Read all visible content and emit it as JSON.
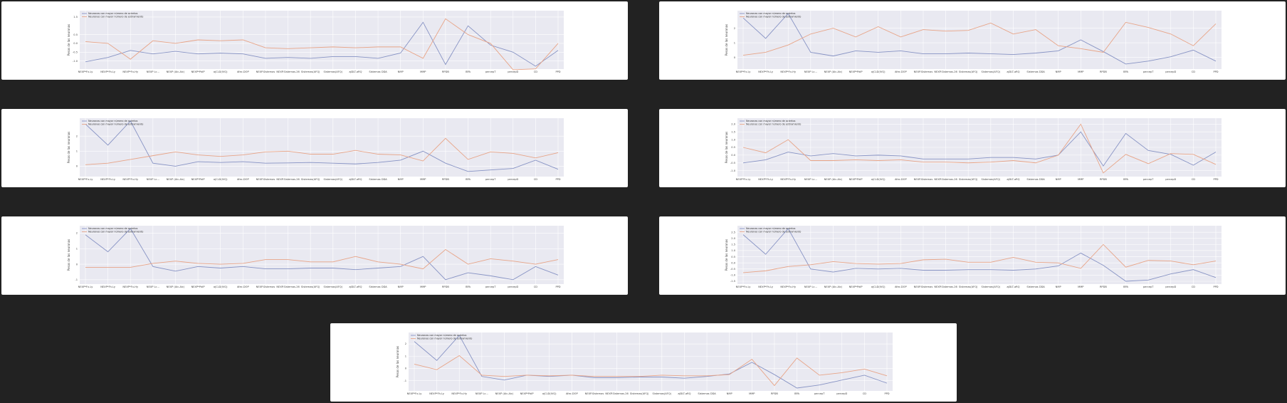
{
  "colors": {
    "series_a": "#8793c4",
    "series_b": "#e8a487",
    "plot_bg": "#e9e9f1",
    "grid": "#ffffff"
  },
  "chart_data": [
    {
      "type": "line",
      "ylabel": "Pesos de las neuronas",
      "categories": [
        "NEXP*Fx-Ly",
        "NEXP*Fh-Ly",
        "NEXP*Fx-Hy",
        "NEXP Lc...",
        "NEXP (Alc-Alc)",
        "NEXP*PdiP",
        "ajCLD(IVQ)",
        "Afec.DOP",
        "NEXP.Sistemas",
        "NEXP.Sistemas-26",
        "Sistemas(AFQ)",
        "Sistemas(AFQ)",
        "ajDLT-aRQ",
        "Sistemas DDA",
        "NMP",
        "MMP",
        "RPDB",
        "BPA",
        "percepT",
        "percepD",
        "CD",
        "PPD"
      ],
      "yticks": [
        "1.5",
        "0.5",
        "0.0",
        "-0.5",
        "-1.0"
      ],
      "ylim": [
        -1.3,
        1.7
      ],
      "series": [
        {
          "name": "Neuronas con mayor número de aciertos",
          "values": [
            -1.05,
            -0.8,
            -0.4,
            -0.6,
            -0.45,
            -0.6,
            -0.55,
            -0.6,
            -0.85,
            -0.8,
            -0.85,
            -0.75,
            -0.75,
            -0.85,
            -0.55,
            1.2,
            -1.2,
            1.0,
            -0.1,
            -0.5,
            -1.3,
            -0.4
          ]
        },
        {
          "name": "Neuronas con mayor número de estiramiento",
          "values": [
            0.1,
            0.0,
            -0.9,
            0.15,
            0.0,
            0.2,
            0.15,
            0.2,
            -0.25,
            -0.3,
            -0.25,
            -0.2,
            -0.25,
            -0.2,
            -0.2,
            -0.85,
            1.4,
            0.5,
            0.0,
            -1.5,
            -1.45,
            0.0
          ]
        }
      ]
    },
    {
      "type": "line",
      "ylabel": "Pesos de las neuronas",
      "categories": [
        "NEXP*Fx-Ly",
        "NEXP*Fh-Ly",
        "NEXP*Fx-Hy",
        "NEXP Lc...",
        "NEXP (Alc-Alc)",
        "NEXP*PdiP",
        "ajCLD(IVQ)",
        "Afec.DOP",
        "NEXP.Sistemas",
        "NEXP.Sistemas-26",
        "Sistemas(AFQ)",
        "Sistemas(AFQ)",
        "ajDLT-aRQ",
        "Sistemas DDA",
        "NMP",
        "MMP",
        "RPDB",
        "BPA",
        "percepT",
        "percepD",
        "CD",
        "PPD"
      ],
      "yticks": [
        "2",
        "1",
        "0"
      ],
      "ylim": [
        -0.6,
        3.0
      ],
      "series": [
        {
          "name": "Neuronas con mayor número de aciertos",
          "values": [
            2.7,
            1.3,
            3.0,
            0.35,
            0.1,
            0.45,
            0.35,
            0.45,
            0.25,
            0.25,
            0.3,
            0.25,
            0.2,
            0.3,
            0.45,
            1.2,
            0.4,
            -0.45,
            -0.25,
            0.05,
            0.5,
            -0.25
          ]
        },
        {
          "name": "Neuronas con mayor número de estiramiento",
          "values": [
            0.15,
            0.35,
            0.85,
            1.6,
            2.0,
            1.4,
            2.1,
            1.4,
            1.9,
            1.8,
            1.85,
            2.35,
            1.6,
            1.9,
            0.8,
            0.6,
            0.35,
            2.4,
            2.05,
            1.6,
            0.8,
            2.3
          ]
        }
      ]
    },
    {
      "type": "line",
      "ylabel": "Pesos de las neuronas",
      "categories": [
        "NEXP*Fx-Ly",
        "NEXP*Fh-Ly",
        "NEXP*Fx-Hy",
        "NEXP Lc...",
        "NEXP (Alc-Alc)",
        "NEXP*PdiP",
        "ajCLD(IVQ)",
        "Afec.DOP",
        "NEXP.Sistemas",
        "NEXP.Sistemas-26",
        "Sistemas(AFQ)",
        "Sistemas(AFQ)",
        "ajDLT-aRQ",
        "Sistemas DDA",
        "NMP",
        "MMP",
        "RPDB",
        "BPA",
        "percepT",
        "percepD",
        "CD",
        "PPD"
      ],
      "yticks": [
        "2",
        "1",
        "0"
      ],
      "ylim": [
        -0.5,
        3.0
      ],
      "series": [
        {
          "name": "Neuronas con mayor número de aciertos",
          "values": [
            2.8,
            1.4,
            3.0,
            0.2,
            0.0,
            0.3,
            0.25,
            0.3,
            0.2,
            0.22,
            0.25,
            0.2,
            0.15,
            0.25,
            0.4,
            1.0,
            0.2,
            -0.35,
            -0.25,
            -0.15,
            0.4,
            -0.2
          ]
        },
        {
          "name": "Neuronas con mayor número de estiramiento",
          "values": [
            0.1,
            0.2,
            0.45,
            0.7,
            0.95,
            0.75,
            0.65,
            0.75,
            0.95,
            1.0,
            0.8,
            0.8,
            1.05,
            0.8,
            0.75,
            0.35,
            1.85,
            0.45,
            0.95,
            0.85,
            0.55,
            0.9
          ]
        }
      ]
    },
    {
      "type": "line",
      "ylabel": "Pesos de las neuronas",
      "categories": [
        "NEXP*Fx-Ly",
        "NEXP*Fh-Ly",
        "NEXP*Fx-Hy",
        "NEXP Lc...",
        "NEXP (Alc-Alc)",
        "NEXP*PdiP",
        "ajCLD(IVQ)",
        "Afec.DOP",
        "NEXP.Sistemas",
        "NEXP.Sistemas-26",
        "Sistemas(AFQ)",
        "Sistemas(AFQ)",
        "ajDLT-aRQ",
        "Sistemas DDA",
        "NMP",
        "MMP",
        "RPDB",
        "BPA",
        "percepT",
        "percepD",
        "CD",
        "PPD"
      ],
      "yticks": [
        "2.0",
        "1.5",
        "1.0",
        "0.5",
        "0.0",
        "-0.5",
        "-1.0"
      ],
      "ylim": [
        -1.2,
        2.2
      ],
      "series": [
        {
          "name": "Neuronas con mayor número de aciertos",
          "values": [
            -0.5,
            -0.3,
            0.2,
            -0.05,
            0.1,
            -0.05,
            0.0,
            -0.05,
            -0.25,
            -0.25,
            -0.25,
            -0.15,
            -0.15,
            -0.25,
            0.0,
            1.5,
            -0.7,
            1.4,
            0.3,
            0.05,
            -0.65,
            0.2
          ]
        },
        {
          "name": "Neuronas con mayor número de estiramiento",
          "values": [
            0.5,
            0.15,
            1.0,
            -0.35,
            -0.35,
            -0.3,
            -0.35,
            -0.3,
            -0.45,
            -0.45,
            -0.5,
            -0.45,
            -0.35,
            -0.5,
            0.0,
            2.0,
            -1.15,
            0.05,
            -0.55,
            0.1,
            0.05,
            -0.6
          ]
        }
      ]
    },
    {
      "type": "line",
      "ylabel": "Pesos de las neuronas",
      "categories": [
        "NEXP*Fx-Ly",
        "NEXP*Fh-Ly",
        "NEXP*Fx-Hy",
        "NEXP Lc...",
        "NEXP (Alc-Alc)",
        "NEXP*PdiP",
        "ajCLD(IVQ)",
        "Afec.DOP",
        "NEXP.Sistemas",
        "NEXP.Sistemas-26",
        "Sistemas(AFQ)",
        "Sistemas(AFQ)",
        "ajDLT-aRQ",
        "Sistemas DDA",
        "NMP",
        "MMP",
        "RPDB",
        "BPA",
        "percepT",
        "percepD",
        "CD",
        "PPD"
      ],
      "yticks": [
        "2",
        "1",
        "0",
        "-1"
      ],
      "ylim": [
        -1.1,
        2.3
      ],
      "series": [
        {
          "name": "Neuronas con mayor número de aciertos",
          "values": [
            1.9,
            0.8,
            2.3,
            -0.15,
            -0.45,
            -0.15,
            -0.25,
            -0.15,
            -0.3,
            -0.3,
            -0.25,
            -0.25,
            -0.35,
            -0.25,
            -0.15,
            0.5,
            -1.0,
            -0.55,
            -0.75,
            -1.0,
            -0.15,
            -0.7
          ]
        },
        {
          "name": "Neuronas con mayor número de estiramiento",
          "values": [
            -0.2,
            -0.2,
            -0.2,
            0.05,
            0.2,
            0.05,
            0.0,
            0.05,
            0.3,
            0.3,
            0.15,
            0.15,
            0.5,
            0.15,
            0.0,
            -0.3,
            0.95,
            0.0,
            0.35,
            0.2,
            0.0,
            0.3
          ]
        }
      ]
    },
    {
      "type": "line",
      "ylabel": "Pesos de las neuronas",
      "categories": [
        "NEXP*Fx-Ly",
        "NEXP*Fh-Ly",
        "NEXP*Fx-Hy",
        "NEXP Lc...",
        "NEXP (Alc-Alc)",
        "NEXP*PdiP",
        "ajCLD(IVQ)",
        "Afec.DOP",
        "NEXP.Sistemas",
        "NEXP.Sistemas-26",
        "Sistemas(AFQ)",
        "Sistemas(AFQ)",
        "ajDLT-aRQ",
        "Sistemas DDA",
        "NMP",
        "MMP",
        "RPDB",
        "BPA",
        "percepT",
        "percepD",
        "CD",
        "PPD"
      ],
      "yticks": [
        "2.5",
        "2.0",
        "1.5",
        "1.0",
        "0.5",
        "0.0",
        "-0.5",
        "-1.0",
        "-1.5"
      ],
      "ylim": [
        -1.5,
        2.8
      ],
      "series": [
        {
          "name": "Neuronas con mayor número de aciertos",
          "values": [
            2.3,
            0.7,
            2.8,
            -0.5,
            -0.75,
            -0.45,
            -0.5,
            -0.45,
            -0.6,
            -0.6,
            -0.55,
            -0.55,
            -0.6,
            -0.5,
            -0.25,
            0.8,
            -0.2,
            -1.5,
            -1.4,
            -0.9,
            -0.55,
            -1.2
          ]
        },
        {
          "name": "Neuronas con mayor número de estiramiento",
          "values": [
            -0.8,
            -0.65,
            -0.3,
            -0.15,
            0.1,
            -0.05,
            -0.1,
            -0.05,
            0.25,
            0.3,
            0.05,
            0.05,
            0.45,
            0.05,
            0.0,
            -0.45,
            1.5,
            -0.35,
            0.2,
            0.15,
            -0.15,
            0.15
          ]
        }
      ]
    },
    {
      "type": "line",
      "ylabel": "Pesos de las neuronas",
      "categories": [
        "NEXP*Fx-Ly",
        "NEXP*Fh-Ly",
        "NEXP*Fx-Hy",
        "NEXP Lc...",
        "NEXP (Alc-Alc)",
        "NEXP*PdiP",
        "ajCLD(IVQ)",
        "Afec.DOP",
        "NEXP.Sistemas",
        "NEXP.Sistemas-26",
        "Sistemas(AFQ)",
        "Sistemas(AFQ)",
        "ajDLT-aRQ",
        "Sistemas DDA",
        "NMP",
        "MMP",
        "RPDB",
        "BPA",
        "percepT",
        "percepD",
        "CD",
        "PPD"
      ],
      "yticks": [
        "2",
        "1",
        "0",
        "-1"
      ],
      "ylim": [
        -1.6,
        2.7
      ],
      "series": [
        {
          "name": "Neuronas con mayor número de aciertos",
          "values": [
            2.2,
            0.65,
            2.7,
            -0.65,
            -0.95,
            -0.55,
            -0.65,
            -0.55,
            -0.75,
            -0.75,
            -0.7,
            -0.7,
            -0.8,
            -0.65,
            -0.45,
            0.5,
            -0.5,
            -1.6,
            -1.35,
            -0.95,
            -0.55,
            -1.2
          ]
        },
        {
          "name": "Neuronas con mayor número de estiramiento",
          "values": [
            0.35,
            -0.1,
            1.05,
            -0.55,
            -0.65,
            -0.55,
            -0.6,
            -0.55,
            -0.65,
            -0.65,
            -0.65,
            -0.55,
            -0.6,
            -0.6,
            -0.5,
            0.75,
            -1.4,
            0.85,
            -0.55,
            -0.35,
            -0.05,
            -0.6
          ]
        }
      ]
    }
  ]
}
